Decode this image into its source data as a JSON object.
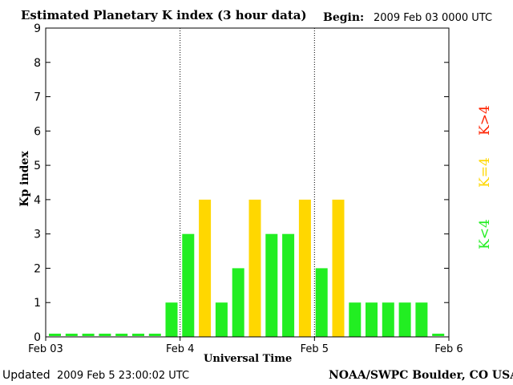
{
  "header": {
    "title": "Estimated Planetary K index (3 hour data)",
    "begin_label": "Begin:",
    "begin_value": "2009 Feb 03 0000 UTC"
  },
  "footer": {
    "updated_label": "Updated",
    "updated_value": "2009 Feb  5 23:00:02 UTC",
    "source": "NOAA/SWPC Boulder, CO USA"
  },
  "legend": {
    "low": "K<4",
    "equal": "K=4",
    "high": "K>4"
  },
  "colors": {
    "low": "#22ee22",
    "equal": "#ffd700",
    "high": "#ff2200"
  },
  "chart_data": {
    "type": "bar",
    "ylabel": "Kp index",
    "xlabel": "Universal Time",
    "ylim": [
      0,
      9
    ],
    "yticks": [
      "0",
      "1",
      "2",
      "3",
      "4",
      "5",
      "6",
      "7",
      "8",
      "9"
    ],
    "xticks": [
      "Feb 03",
      "Feb 4",
      "Feb 5",
      "Feb 6"
    ],
    "values": [
      0,
      0,
      0,
      0,
      0,
      0,
      0,
      1,
      3,
      4,
      1,
      2,
      4,
      3,
      3,
      4,
      2,
      4,
      1,
      1,
      1,
      1,
      1,
      0
    ]
  }
}
